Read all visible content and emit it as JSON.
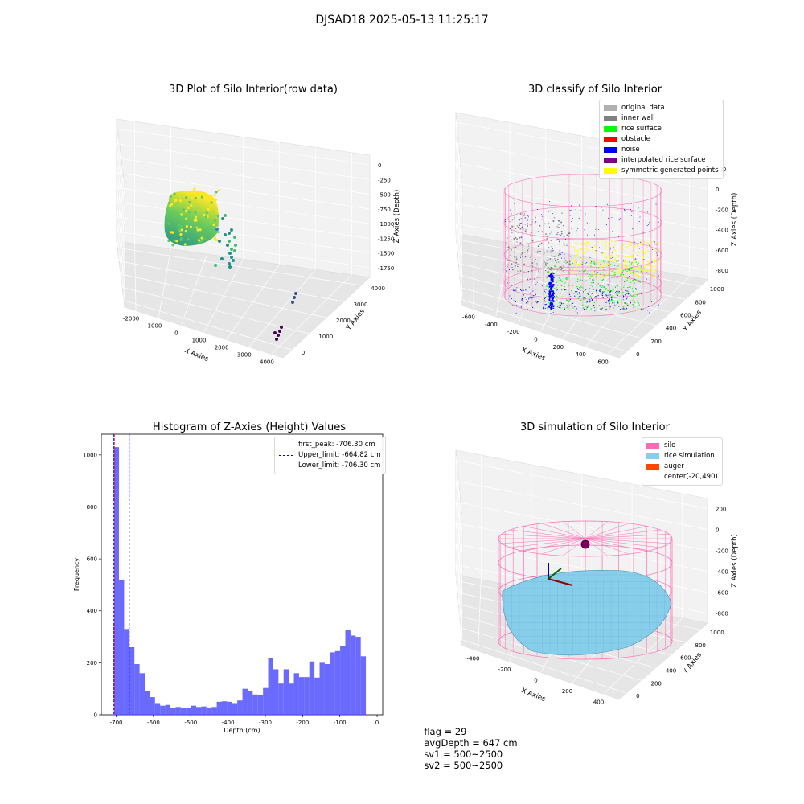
{
  "suptitle": "DJSAD18 2025-05-13 11:25:17",
  "footer": {
    "flag": "flag = 29",
    "avg_depth": "avgDepth = 647 cm",
    "sv1": "sv1 = 500~2500",
    "sv2": "sv2 = 500~2500"
  },
  "colors": {
    "raw_low": "#440154",
    "raw_mid": "#21918c",
    "raw_high": "#fde725",
    "pink": "#ff69b4",
    "light_blue": "#87ceeb",
    "hist_bar": "#5050ff",
    "peak_line": "#ff0000",
    "limit_line": "#0000cd"
  },
  "chart_data": [
    {
      "type": "scatter",
      "title": "3D Plot of Silo Interior(row data)",
      "xlabel": "X Axies",
      "ylabel": "Y Axies",
      "zlabel": "Z Axies (Depth)",
      "x_ticks": [
        "-2000",
        "-1000",
        "0",
        "1000",
        "2000",
        "3000",
        "4000"
      ],
      "y_ticks": [
        "0",
        "1000",
        "2000",
        "3000",
        "4000"
      ],
      "z_ticks": [
        "0",
        "-250",
        "-500",
        "-750",
        "-1000",
        "-1250",
        "-1500",
        "-1750"
      ],
      "colormap": "viridis"
    },
    {
      "type": "scatter",
      "title": "3D classify of Silo Interior",
      "xlabel": "X Axies",
      "ylabel": "Y Axies",
      "zlabel": "Z Axies (Depth)",
      "x_ticks": [
        "-600",
        "-400",
        "-200",
        "0",
        "200",
        "400",
        "600"
      ],
      "y_ticks": [
        "0",
        "200",
        "400",
        "600",
        "800",
        "1000"
      ],
      "z_ticks": [
        "200",
        "0",
        "-200",
        "-400",
        "-600",
        "-800"
      ],
      "legend": [
        {
          "label": "original data",
          "color": "#b0b0b0"
        },
        {
          "label": "inner wall",
          "color": "#808080"
        },
        {
          "label": "rice surface",
          "color": "#00ff00"
        },
        {
          "label": "obstacle",
          "color": "#ff0000"
        },
        {
          "label": "noise",
          "color": "#0000ff"
        },
        {
          "label": "interpolated rice surface",
          "color": "#800080"
        },
        {
          "label": "symmetric generated points",
          "color": "#ffff00"
        }
      ]
    },
    {
      "type": "bar",
      "title": "Histogram of Z-Axies (Height) Values",
      "xlabel": "Depth (cm)",
      "ylabel": "Frequency",
      "xlim": [
        -740,
        15
      ],
      "ylim": [
        0,
        1080
      ],
      "x_ticks": [
        -700,
        -600,
        -500,
        -400,
        -300,
        -200,
        -100,
        0
      ],
      "y_ticks": [
        0,
        200,
        400,
        600,
        800,
        1000
      ],
      "bin_start": -706.3,
      "bin_width": 13.8,
      "values": [
        1030,
        520,
        330,
        260,
        195,
        160,
        90,
        68,
        45,
        35,
        38,
        25,
        30,
        28,
        27,
        35,
        30,
        32,
        28,
        30,
        50,
        52,
        50,
        45,
        55,
        100,
        92,
        78,
        75,
        103,
        218,
        175,
        120,
        175,
        120,
        160,
        145,
        145,
        205,
        143,
        200,
        195,
        240,
        245,
        265,
        325,
        305,
        300,
        225
      ],
      "vlines": [
        {
          "label": "first_peak: -706.30 cm",
          "x": -706.3,
          "color": "#ff0000"
        },
        {
          "label": "Upper_limit: -664.82 cm",
          "x": -664.82,
          "color": "#0000cd"
        },
        {
          "label": "Lower_limit: -706.30 cm",
          "x": -706.3,
          "color": "#0000cd"
        }
      ]
    },
    {
      "type": "scatter",
      "title": "3D simulation of Silo Interior",
      "xlabel": "X Axies",
      "ylabel": "Y Axies",
      "zlabel": "Z Axies (Depth)",
      "x_ticks": [
        "-400",
        "-200",
        "0",
        "200",
        "400"
      ],
      "y_ticks": [
        "0",
        "200",
        "400",
        "600",
        "800",
        "1000"
      ],
      "z_ticks": [
        "200",
        "0",
        "-200",
        "-400",
        "-600",
        "-800"
      ],
      "legend": [
        {
          "label": "silo",
          "color": "#ff69b4"
        },
        {
          "label": "rice simulation",
          "color": "#87ceeb"
        },
        {
          "label": "auger",
          "color": "#ff4500"
        },
        {
          "label": "center(-20,490)",
          "color": ""
        }
      ]
    }
  ]
}
